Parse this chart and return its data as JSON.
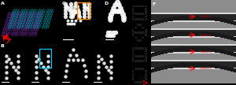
{
  "figsize": [
    3.0,
    1.06
  ],
  "dpi": 100,
  "bg": "#000000",
  "panels": {
    "A": [
      0.0,
      0.5,
      0.255,
      0.5
    ],
    "C": [
      0.26,
      0.5,
      0.175,
      0.5
    ],
    "D": [
      0.44,
      0.5,
      0.11,
      0.5
    ],
    "E1": [
      0.558,
      0.755,
      0.075,
      0.245
    ],
    "E2": [
      0.558,
      0.5,
      0.075,
      0.245
    ],
    "E3": [
      0.558,
      0.25,
      0.075,
      0.245
    ],
    "E4": [
      0.558,
      0.0,
      0.075,
      0.25
    ],
    "F": [
      0.64,
      0.0,
      0.36,
      1.0
    ],
    "B1": [
      0.0,
      0.0,
      0.125,
      0.49
    ],
    "B2": [
      0.128,
      0.0,
      0.125,
      0.49
    ],
    "B3": [
      0.258,
      0.0,
      0.13,
      0.49
    ],
    "B4": [
      0.392,
      0.0,
      0.13,
      0.49
    ]
  },
  "nano_purple": "#9933cc",
  "nano_cyan": "#00bbcc",
  "cyan_border": "#00ccff",
  "orange_border": "#ff8800",
  "red": "#ff0000",
  "white": "#ffffff",
  "dark_bg": "#080808"
}
